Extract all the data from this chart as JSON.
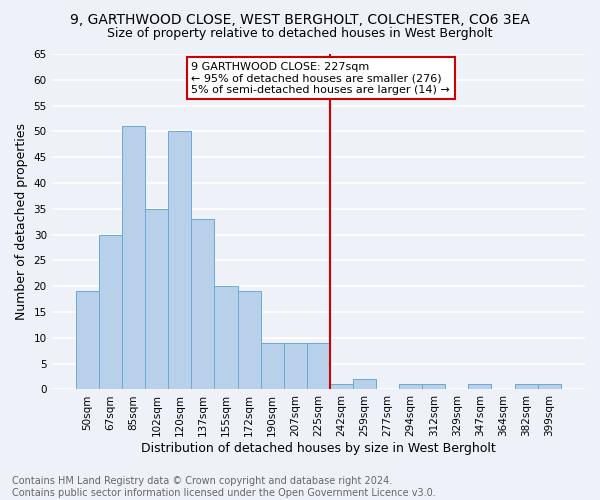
{
  "title": "9, GARTHWOOD CLOSE, WEST BERGHOLT, COLCHESTER, CO6 3EA",
  "subtitle": "Size of property relative to detached houses in West Bergholt",
  "xlabel": "Distribution of detached houses by size in West Bergholt",
  "ylabel": "Number of detached properties",
  "footer_line1": "Contains HM Land Registry data © Crown copyright and database right 2024.",
  "footer_line2": "Contains public sector information licensed under the Open Government Licence v3.0.",
  "bin_labels": [
    "50sqm",
    "67sqm",
    "85sqm",
    "102sqm",
    "120sqm",
    "137sqm",
    "155sqm",
    "172sqm",
    "190sqm",
    "207sqm",
    "225sqm",
    "242sqm",
    "259sqm",
    "277sqm",
    "294sqm",
    "312sqm",
    "329sqm",
    "347sqm",
    "364sqm",
    "382sqm",
    "399sqm"
  ],
  "bar_values": [
    19,
    30,
    51,
    35,
    50,
    33,
    20,
    19,
    9,
    9,
    9,
    1,
    2,
    0,
    1,
    1,
    0,
    1,
    0,
    1,
    1
  ],
  "bar_color": "#b8d0ea",
  "bar_edge_color": "#6aaad4",
  "annotation_text": "9 GARTHWOOD CLOSE: 227sqm\n← 95% of detached houses are smaller (276)\n5% of semi-detached houses are larger (14) →",
  "annotation_box_color": "#ffffff",
  "annotation_box_edge_color": "#cc0000",
  "vline_color": "#cc0000",
  "ylim": [
    0,
    65
  ],
  "yticks": [
    0,
    5,
    10,
    15,
    20,
    25,
    30,
    35,
    40,
    45,
    50,
    55,
    60,
    65
  ],
  "background_color": "#eef2f8",
  "grid_color": "#ffffff",
  "title_fontsize": 10,
  "subtitle_fontsize": 9,
  "axis_label_fontsize": 9,
  "tick_fontsize": 7.5,
  "annotation_fontsize": 8,
  "footer_fontsize": 7
}
